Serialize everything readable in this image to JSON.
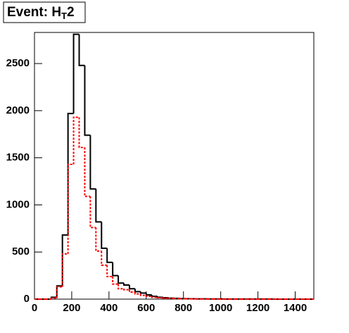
{
  "chart_data": {
    "type": "histogram",
    "title_parts": [
      "Event: H",
      "T",
      "2"
    ],
    "bins": [
      0,
      30,
      60,
      90,
      120,
      150,
      180,
      210,
      240,
      270,
      300,
      330,
      360,
      390,
      420,
      450,
      480,
      510,
      540,
      570,
      600,
      630,
      660,
      690,
      720,
      750,
      780,
      810,
      840,
      870,
      900,
      930,
      960,
      990,
      1020,
      1050,
      1080,
      1110,
      1140,
      1170,
      1200,
      1230,
      1260,
      1290,
      1320,
      1350,
      1380,
      1410,
      1440,
      1470,
      1500
    ],
    "series": [
      {
        "color": "#000000",
        "line_style": "solid",
        "values": [
          0,
          0,
          0,
          20,
          140,
          680,
          1970,
          2810,
          2480,
          1740,
          1170,
          820,
          540,
          390,
          250,
          170,
          150,
          110,
          80,
          65,
          45,
          30,
          20,
          15,
          10,
          8,
          6,
          5,
          4,
          3,
          3,
          2,
          2,
          2,
          1,
          1,
          1,
          1,
          1,
          1,
          1,
          1,
          1,
          0,
          0,
          0,
          0,
          0,
          0,
          0
        ]
      },
      {
        "color": "#ff0000",
        "line_style": "dashed",
        "values": [
          0,
          0,
          0,
          10,
          130,
          480,
          1430,
          1930,
          1610,
          1090,
          760,
          510,
          360,
          240,
          160,
          110,
          100,
          75,
          55,
          40,
          30,
          20,
          15,
          10,
          8,
          6,
          5,
          4,
          3,
          2,
          2,
          2,
          1,
          1,
          1,
          1,
          1,
          1,
          1,
          1,
          1,
          1,
          0,
          0,
          0,
          0,
          0,
          0,
          0,
          0
        ]
      }
    ],
    "xlim": [
      0,
      1500
    ],
    "ylim": [
      0,
      2830
    ],
    "xticks": [
      0,
      200,
      400,
      600,
      800,
      1000,
      1200,
      1400
    ],
    "yticks": [
      0,
      500,
      1000,
      1500,
      2000,
      2500
    ]
  }
}
